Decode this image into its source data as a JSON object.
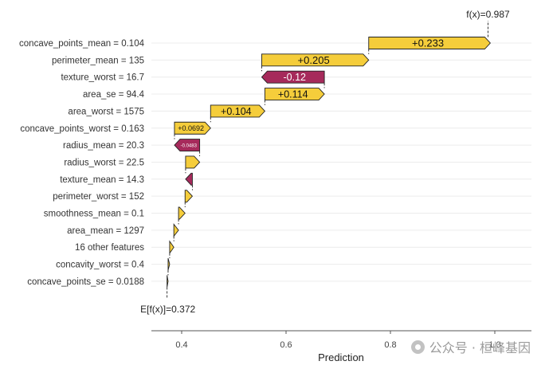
{
  "chart_data": {
    "type": "waterfall",
    "base": {
      "label": "E[f(x)]=0.372",
      "value": 0.372
    },
    "final": {
      "label": "f(x)=0.987",
      "value": 0.987
    },
    "features": [
      {
        "label": "concave_points_mean = 0.104",
        "contribution": 0.233,
        "value_label": "+0.233"
      },
      {
        "label": "perimeter_mean = 135",
        "contribution": 0.205,
        "value_label": "+0.205"
      },
      {
        "label": "texture_worst = 16.7",
        "contribution": -0.12,
        "value_label": "-0.12"
      },
      {
        "label": "area_se = 94.4",
        "contribution": 0.114,
        "value_label": "+0.114"
      },
      {
        "label": "area_worst = 1575",
        "contribution": 0.104,
        "value_label": "+0.104"
      },
      {
        "label": "concave_points_worst = 0.163",
        "contribution": 0.0692,
        "value_label": "+0.0692"
      },
      {
        "label": "radius_mean = 20.3",
        "contribution": -0.0483,
        "value_label": "-0.0483"
      },
      {
        "label": "radius_worst = 22.5",
        "contribution": 0.027,
        "value_label": ""
      },
      {
        "label": "texture_mean = 14.3",
        "contribution": -0.013,
        "value_label": ""
      },
      {
        "label": "perimeter_worst = 152",
        "contribution": 0.014,
        "value_label": ""
      },
      {
        "label": "smoothness_mean = 0.1",
        "contribution": 0.0125,
        "value_label": ""
      },
      {
        "label": "area_mean = 1297",
        "contribution": 0.009,
        "value_label": ""
      },
      {
        "label": "16 other features",
        "contribution": 0.008,
        "value_label": ""
      },
      {
        "label": "concavity_worst = 0.4",
        "contribution": 0.003,
        "value_label": ""
      },
      {
        "label": "concave_points_se = 0.0188",
        "contribution": 0.002,
        "value_label": ""
      }
    ],
    "xlabel": "Prediction",
    "xlim": [
      0.35,
      1.07
    ],
    "x_ticks": [
      0.4,
      0.6,
      0.8,
      1.0
    ],
    "x_tick_labels": [
      "0.4",
      "0.6",
      "0.8",
      "1.0"
    ],
    "colors": {
      "positive": "#f5cd3b",
      "negative": "#a62a5b",
      "grid": "#ececec",
      "axis": "#555555"
    },
    "grid": true
  },
  "watermark": {
    "text": "公众号 · 桓峰基因",
    "logo_icon": "wechat-logo-icon"
  }
}
